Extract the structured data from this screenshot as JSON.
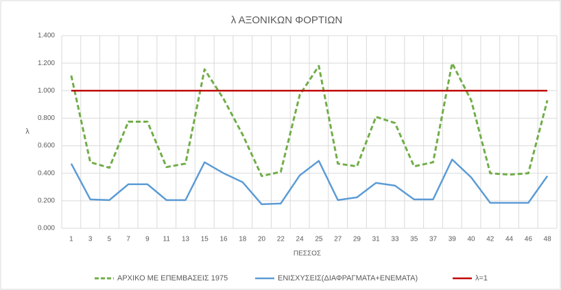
{
  "chart_data": {
    "type": "line",
    "title": "λ ΑΞΟΝΙΚΩΝ ΦΟΡΤΙΩΝ",
    "x_label": "ΠΕΣΣΟΣ",
    "y_label": "λ",
    "categories": [
      "1",
      "3",
      "5",
      "7",
      "9",
      "11",
      "13",
      "15",
      "16",
      "18",
      "20",
      "22",
      "24",
      "25",
      "27",
      "29",
      "31",
      "33",
      "35",
      "37",
      "39",
      "40",
      "42",
      "44",
      "46",
      "48"
    ],
    "series": [
      {
        "name": "ΑΡΧΙΚΟ ΜΕ ΕΠΕΜΒΑΣΕΙΣ 1975",
        "color": "#70ad47",
        "line_style": "dashed",
        "values": [
          1.11,
          0.48,
          0.44,
          0.775,
          0.775,
          0.445,
          0.47,
          1.155,
          0.94,
          0.68,
          0.38,
          0.41,
          0.97,
          1.18,
          0.47,
          0.45,
          0.81,
          0.765,
          0.45,
          0.48,
          1.2,
          0.93,
          0.4,
          0.39,
          0.4,
          0.93
        ]
      },
      {
        "name": "ΕΝΙΣΧΥΣΕΙΣ(ΔΙΑΦΡΑΓΜΑΤΑ+ΕΝΕΜΑΤΑ)",
        "color": "#5b9bd5",
        "line_style": "solid",
        "values": [
          0.47,
          0.21,
          0.205,
          0.32,
          0.32,
          0.205,
          0.205,
          0.48,
          0.4,
          0.335,
          0.175,
          0.18,
          0.385,
          0.49,
          0.205,
          0.225,
          0.33,
          0.31,
          0.21,
          0.21,
          0.5,
          0.37,
          0.185,
          0.185,
          0.185,
          0.38
        ]
      },
      {
        "name": "λ=1",
        "color": "#c00000",
        "line_style": "solid",
        "values": [
          1,
          1,
          1,
          1,
          1,
          1,
          1,
          1,
          1,
          1,
          1,
          1,
          1,
          1,
          1,
          1,
          1,
          1,
          1,
          1,
          1,
          1,
          1,
          1,
          1,
          1
        ]
      }
    ],
    "ylim": [
      0,
      1.4
    ],
    "yticks": [
      {
        "value": 0,
        "label": "0.000"
      },
      {
        "value": 0.2,
        "label": "0.200"
      },
      {
        "value": 0.4,
        "label": "0.400"
      },
      {
        "value": 0.6,
        "label": "0.600"
      },
      {
        "value": 0.8,
        "label": "0.800"
      },
      {
        "value": 1,
        "label": "1.000"
      },
      {
        "value": 1.2,
        "label": "1.200"
      },
      {
        "value": 1.4,
        "label": "1.400"
      }
    ],
    "grid": true,
    "legend": "bottom"
  }
}
